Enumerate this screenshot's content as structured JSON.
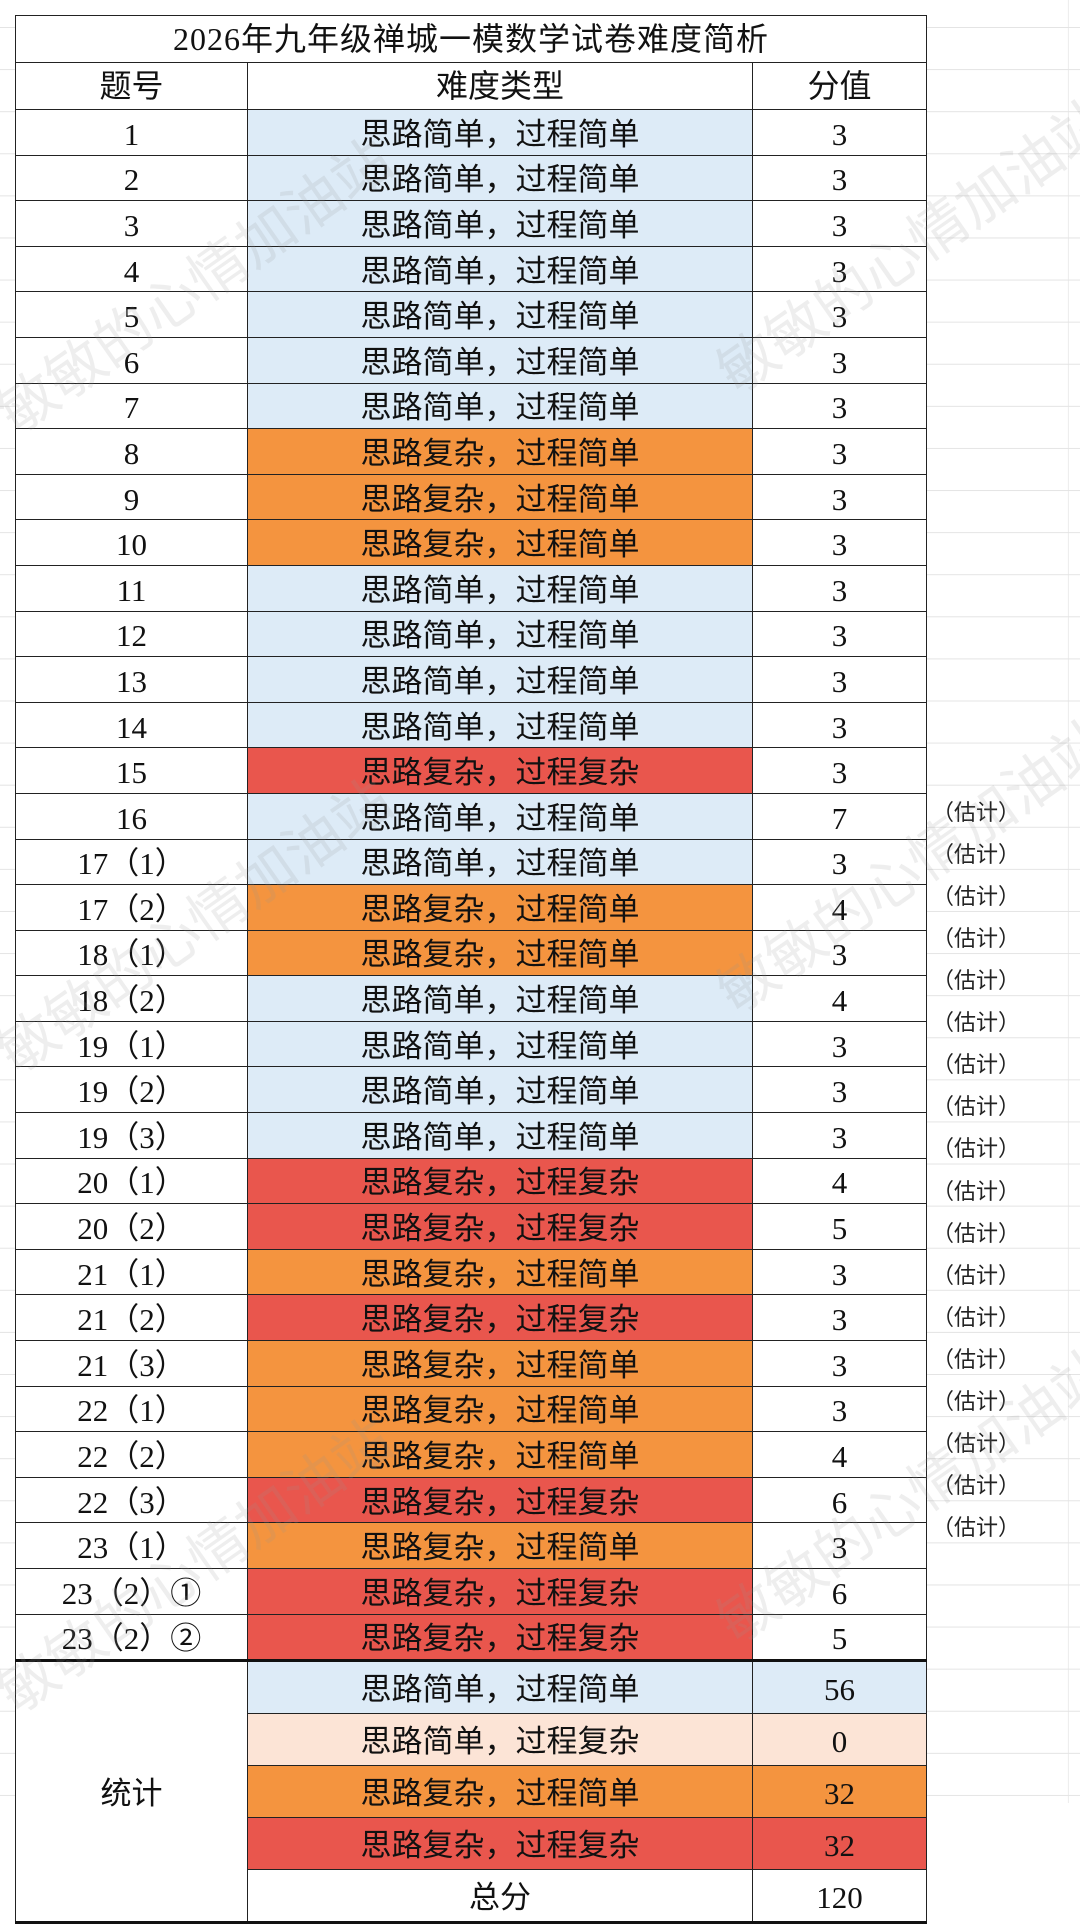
{
  "title": "2026年九年级禅城一模数学试卷难度简析",
  "headers": {
    "number": "题号",
    "type": "难度类型",
    "score": "分值"
  },
  "colors": {
    "simple_simple": "#ddebf7",
    "simple_complex": "#fce4d6",
    "complex_simple": "#f4943f",
    "complex_complex": "#e9564d"
  },
  "estimate_label": "（估计）",
  "watermark": "敏敏的心情加油站",
  "rows": [
    {
      "no": "1",
      "type": "思路简单，过程简单",
      "cls": "ss",
      "score": "3",
      "est": false
    },
    {
      "no": "2",
      "type": "思路简单，过程简单",
      "cls": "ss",
      "score": "3",
      "est": false
    },
    {
      "no": "3",
      "type": "思路简单，过程简单",
      "cls": "ss",
      "score": "3",
      "est": false
    },
    {
      "no": "4",
      "type": "思路简单，过程简单",
      "cls": "ss",
      "score": "3",
      "est": false
    },
    {
      "no": "5",
      "type": "思路简单，过程简单",
      "cls": "ss",
      "score": "3",
      "est": false
    },
    {
      "no": "6",
      "type": "思路简单，过程简单",
      "cls": "ss",
      "score": "3",
      "est": false
    },
    {
      "no": "7",
      "type": "思路简单，过程简单",
      "cls": "ss",
      "score": "3",
      "est": false
    },
    {
      "no": "8",
      "type": "思路复杂，过程简单",
      "cls": "cs",
      "score": "3",
      "est": false
    },
    {
      "no": "9",
      "type": "思路复杂，过程简单",
      "cls": "cs",
      "score": "3",
      "est": false
    },
    {
      "no": "10",
      "type": "思路复杂，过程简单",
      "cls": "cs",
      "score": "3",
      "est": false
    },
    {
      "no": "11",
      "type": "思路简单，过程简单",
      "cls": "ss",
      "score": "3",
      "est": false
    },
    {
      "no": "12",
      "type": "思路简单，过程简单",
      "cls": "ss",
      "score": "3",
      "est": false
    },
    {
      "no": "13",
      "type": "思路简单，过程简单",
      "cls": "ss",
      "score": "3",
      "est": false
    },
    {
      "no": "14",
      "type": "思路简单，过程简单",
      "cls": "ss",
      "score": "3",
      "est": false
    },
    {
      "no": "15",
      "type": "思路复杂，过程复杂",
      "cls": "cc",
      "score": "3",
      "est": false
    },
    {
      "no": "16",
      "type": "思路简单，过程简单",
      "cls": "ss",
      "score": "7",
      "est": false
    },
    {
      "no": "17（1）",
      "type": "思路简单，过程简单",
      "cls": "ss",
      "score": "3",
      "est": true
    },
    {
      "no": "17（2）",
      "type": "思路复杂，过程简单",
      "cls": "cs",
      "score": "4",
      "est": true
    },
    {
      "no": "18（1）",
      "type": "思路复杂，过程简单",
      "cls": "cs",
      "score": "3",
      "est": true
    },
    {
      "no": "18（2）",
      "type": "思路简单，过程简单",
      "cls": "ss",
      "score": "4",
      "est": true
    },
    {
      "no": "19（1）",
      "type": "思路简单，过程简单",
      "cls": "ss",
      "score": "3",
      "est": true
    },
    {
      "no": "19（2）",
      "type": "思路简单，过程简单",
      "cls": "ss",
      "score": "3",
      "est": true
    },
    {
      "no": "19（3）",
      "type": "思路简单，过程简单",
      "cls": "ss",
      "score": "3",
      "est": true
    },
    {
      "no": "20（1）",
      "type": "思路复杂，过程复杂",
      "cls": "cc",
      "score": "4",
      "est": true
    },
    {
      "no": "20（2）",
      "type": "思路复杂，过程复杂",
      "cls": "cc",
      "score": "5",
      "est": true
    },
    {
      "no": "21（1）",
      "type": "思路复杂，过程简单",
      "cls": "cs",
      "score": "3",
      "est": true
    },
    {
      "no": "21（2）",
      "type": "思路复杂，过程复杂",
      "cls": "cc",
      "score": "3",
      "est": true
    },
    {
      "no": "21（3）",
      "type": "思路复杂，过程简单",
      "cls": "cs",
      "score": "3",
      "est": true
    },
    {
      "no": "22（1）",
      "type": "思路复杂，过程简单",
      "cls": "cs",
      "score": "3",
      "est": true
    },
    {
      "no": "22（2）",
      "type": "思路复杂，过程简单",
      "cls": "cs",
      "score": "4",
      "est": true
    },
    {
      "no": "22（3）",
      "type": "思路复杂，过程复杂",
      "cls": "cc",
      "score": "6",
      "est": true
    },
    {
      "no": "23（1）",
      "type": "思路复杂，过程简单",
      "cls": "cs",
      "score": "3",
      "est": true
    },
    {
      "no": "23（2）①",
      "type": "思路复杂，过程复杂",
      "cls": "cc",
      "score": "6",
      "est": true
    },
    {
      "no": "23（2）②",
      "type": "思路复杂，过程复杂",
      "cls": "cc",
      "score": "5",
      "est": true
    }
  ],
  "stats": {
    "label": "统计",
    "items": [
      {
        "type": "思路简单，过程简单",
        "cls": "ss",
        "score": "56"
      },
      {
        "type": "思路简单，过程复杂",
        "cls": "sc",
        "score": "0"
      },
      {
        "type": "思路复杂，过程简单",
        "cls": "cs",
        "score": "32"
      },
      {
        "type": "思路复杂，过程复杂",
        "cls": "cc",
        "score": "32"
      }
    ],
    "total_label": "总分",
    "total": "120"
  }
}
